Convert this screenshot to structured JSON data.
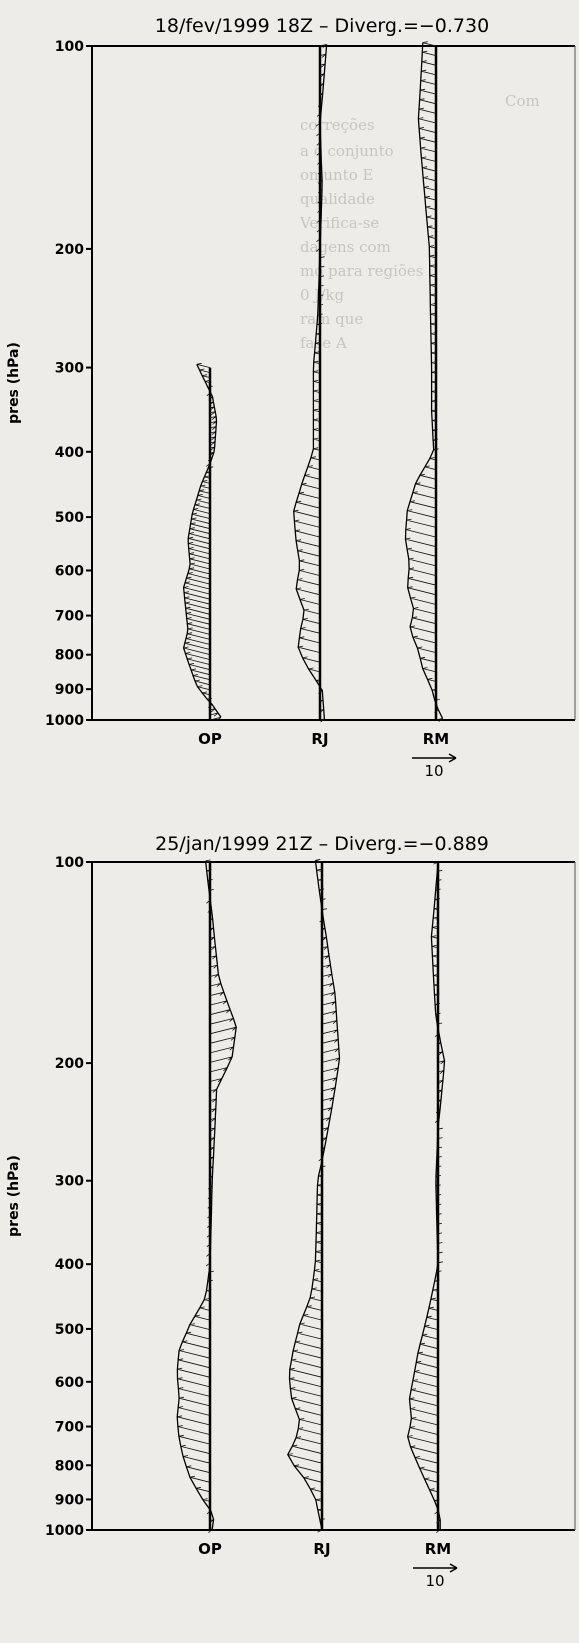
{
  "chart_data": [
    {
      "type": "wind-profile",
      "title": "18/fev/1999 18Z  –  Diverg.=−0.730",
      "ylabel": "pres (hPa)",
      "yaxis": {
        "scale": "log",
        "inverted": true,
        "range": [
          100,
          1000
        ]
      },
      "yticks": [
        100,
        200,
        300,
        400,
        500,
        600,
        700,
        800,
        900,
        1000
      ],
      "stations": [
        "OP",
        "RJ",
        "RM"
      ],
      "scale_arrow_label": "10",
      "profiles": [
        {
          "station": "OP",
          "p_top": 300,
          "points": [
            [
              300,
              -0.6
            ],
            [
              330,
              0.1
            ],
            [
              360,
              0.3
            ],
            [
              400,
              0.2
            ],
            [
              450,
              -0.4
            ],
            [
              500,
              -0.8
            ],
            [
              550,
              -1.0
            ],
            [
              600,
              -0.9
            ],
            [
              650,
              -1.2
            ],
            [
              700,
              -1.1
            ],
            [
              750,
              -1.0
            ],
            [
              800,
              -1.2
            ],
            [
              850,
              -0.9
            ],
            [
              900,
              -0.6
            ],
            [
              950,
              0.1
            ],
            [
              1000,
              0.5
            ]
          ]
        },
        {
          "station": "RJ",
          "p_top": 100,
          "points": [
            [
              100,
              0.3
            ],
            [
              130,
              0.0
            ],
            [
              160,
              0.1
            ],
            [
              200,
              0.0
            ],
            [
              250,
              -0.1
            ],
            [
              300,
              -0.3
            ],
            [
              400,
              -0.3
            ],
            [
              450,
              -0.8
            ],
            [
              500,
              -1.2
            ],
            [
              550,
              -1.1
            ],
            [
              600,
              -0.9
            ],
            [
              650,
              -1.1
            ],
            [
              700,
              -0.7
            ],
            [
              750,
              -0.9
            ],
            [
              800,
              -1.0
            ],
            [
              850,
              -0.5
            ],
            [
              900,
              0.1
            ],
            [
              1000,
              0.2
            ]
          ]
        },
        {
          "station": "RM",
          "p_top": 100,
          "points": [
            [
              100,
              -0.6
            ],
            [
              130,
              -0.8
            ],
            [
              170,
              -0.5
            ],
            [
              200,
              -0.3
            ],
            [
              300,
              -0.2
            ],
            [
              350,
              -0.2
            ],
            [
              400,
              -0.1
            ],
            [
              450,
              -0.9
            ],
            [
              500,
              -1.3
            ],
            [
              550,
              -1.4
            ],
            [
              600,
              -1.2
            ],
            [
              650,
              -1.3
            ],
            [
              700,
              -1.0
            ],
            [
              750,
              -1.2
            ],
            [
              800,
              -0.8
            ],
            [
              850,
              -0.6
            ],
            [
              900,
              -0.2
            ],
            [
              950,
              0.0
            ],
            [
              1000,
              0.3
            ]
          ]
        }
      ]
    },
    {
      "type": "wind-profile",
      "title": "25/jan/1999 21Z  –  Diverg.=−0.889",
      "ylabel": "pres (hPa)",
      "yaxis": {
        "scale": "log",
        "inverted": true,
        "range": [
          100,
          1000
        ]
      },
      "yticks": [
        100,
        200,
        300,
        400,
        500,
        600,
        700,
        800,
        900,
        1000
      ],
      "stations": [
        "OP",
        "RJ",
        "RM"
      ],
      "scale_arrow_label": "10",
      "profiles": [
        {
          "station": "OP",
          "p_top": 100,
          "points": [
            [
              100,
              -0.2
            ],
            [
              120,
              0.1
            ],
            [
              150,
              0.4
            ],
            [
              180,
              1.2
            ],
            [
              200,
              1.0
            ],
            [
              220,
              0.3
            ],
            [
              300,
              0.1
            ],
            [
              400,
              0.0
            ],
            [
              450,
              -0.2
            ],
            [
              500,
              -0.9
            ],
            [
              550,
              -1.4
            ],
            [
              600,
              -1.5
            ],
            [
              650,
              -1.4
            ],
            [
              700,
              -1.5
            ],
            [
              750,
              -1.4
            ],
            [
              800,
              -1.2
            ],
            [
              850,
              -0.9
            ],
            [
              900,
              -0.4
            ],
            [
              950,
              0.2
            ],
            [
              1000,
              0.1
            ]
          ]
        },
        {
          "station": "RJ",
          "p_top": 100,
          "points": [
            [
              100,
              -0.3
            ],
            [
              130,
              0.2
            ],
            [
              160,
              0.6
            ],
            [
              200,
              0.8
            ],
            [
              250,
              0.3
            ],
            [
              300,
              -0.2
            ],
            [
              400,
              -0.3
            ],
            [
              450,
              -0.5
            ],
            [
              500,
              -1.0
            ],
            [
              550,
              -1.3
            ],
            [
              600,
              -1.5
            ],
            [
              650,
              -1.4
            ],
            [
              700,
              -1.0
            ],
            [
              750,
              -1.2
            ],
            [
              800,
              -1.6
            ],
            [
              850,
              -0.8
            ],
            [
              900,
              -0.3
            ],
            [
              1000,
              0.0
            ]
          ]
        },
        {
          "station": "RM",
          "p_top": 100,
          "points": [
            [
              100,
              0.0
            ],
            [
              130,
              -0.3
            ],
            [
              170,
              -0.1
            ],
            [
              200,
              0.3
            ],
            [
              250,
              0.0
            ],
            [
              300,
              -0.1
            ],
            [
              400,
              0.0
            ],
            [
              450,
              -0.3
            ],
            [
              500,
              -0.6
            ],
            [
              550,
              -0.9
            ],
            [
              600,
              -1.1
            ],
            [
              650,
              -1.3
            ],
            [
              700,
              -1.2
            ],
            [
              750,
              -1.4
            ],
            [
              800,
              -1.0
            ],
            [
              850,
              -0.6
            ],
            [
              900,
              -0.2
            ],
            [
              950,
              0.1
            ],
            [
              1000,
              0.1
            ]
          ]
        }
      ]
    }
  ]
}
